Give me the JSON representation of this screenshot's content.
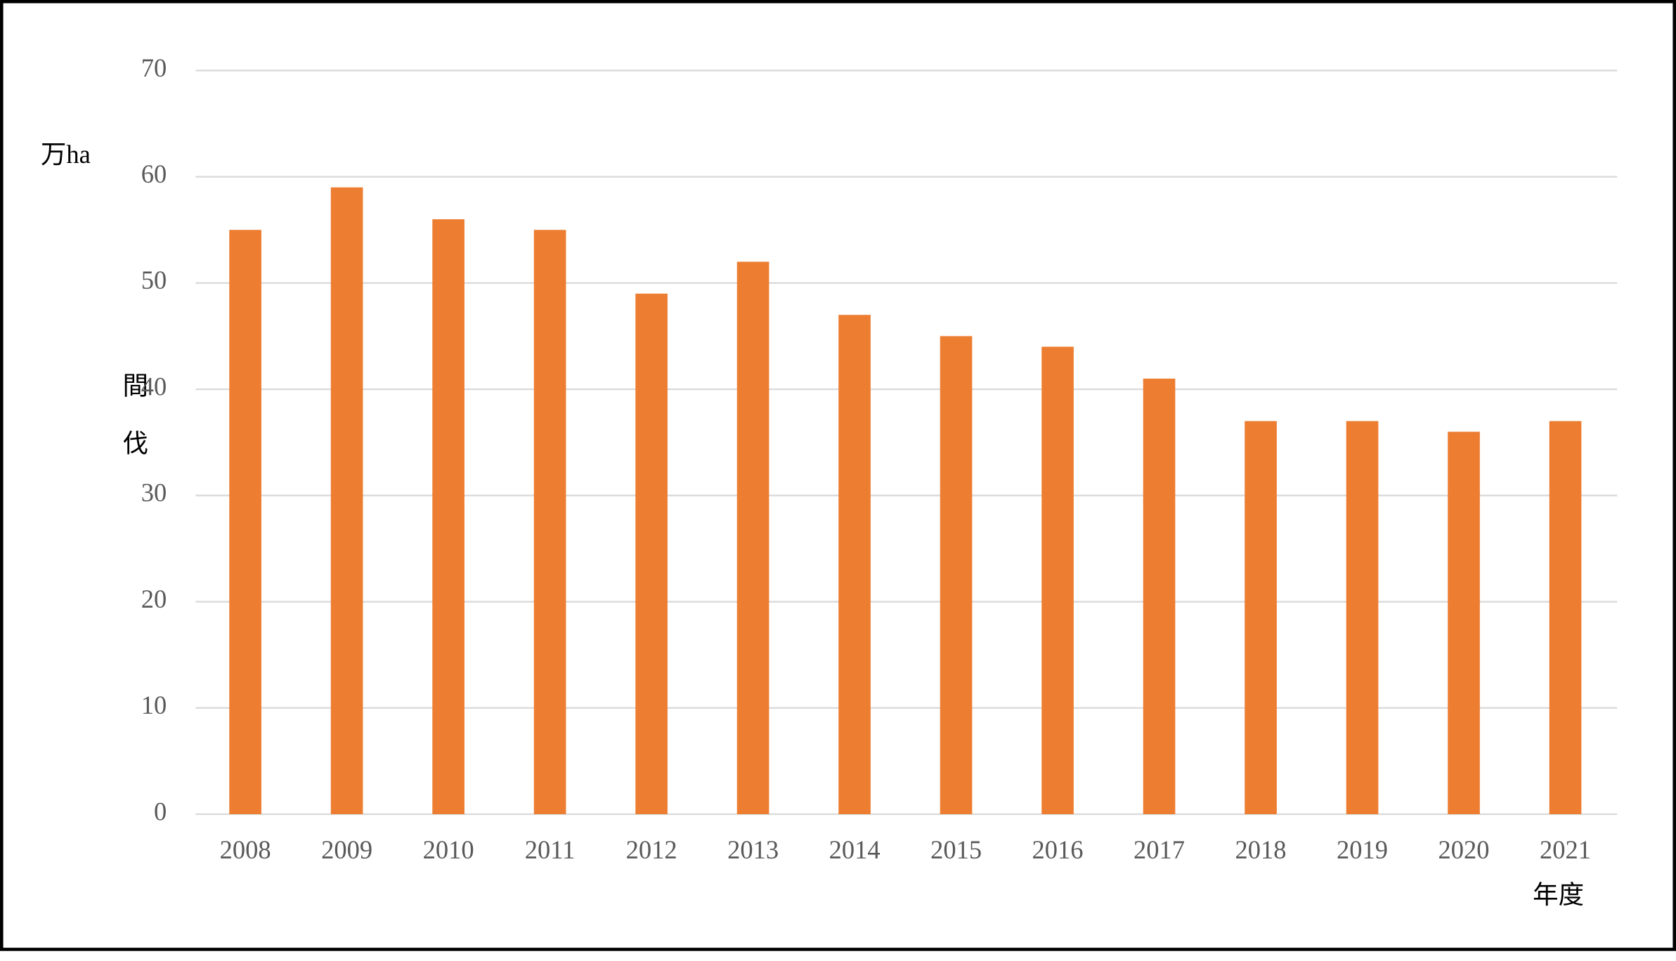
{
  "chart_data": {
    "type": "bar",
    "y_label": "万ha",
    "y_label_vertical": "間伐",
    "x_label": "年度",
    "categories": [
      "2008",
      "2009",
      "2010",
      "2011",
      "2012",
      "2013",
      "2014",
      "2015",
      "2016",
      "2017",
      "2018",
      "2019",
      "2020",
      "2021"
    ],
    "values": [
      55,
      59,
      56,
      55,
      49,
      52,
      47,
      45,
      44,
      41,
      37,
      37,
      36,
      37
    ],
    "color": "#ed7d31",
    "ylim": [
      0,
      70
    ],
    "yticks": [
      0,
      10,
      20,
      30,
      40,
      50,
      60,
      70
    ],
    "grid": true
  }
}
